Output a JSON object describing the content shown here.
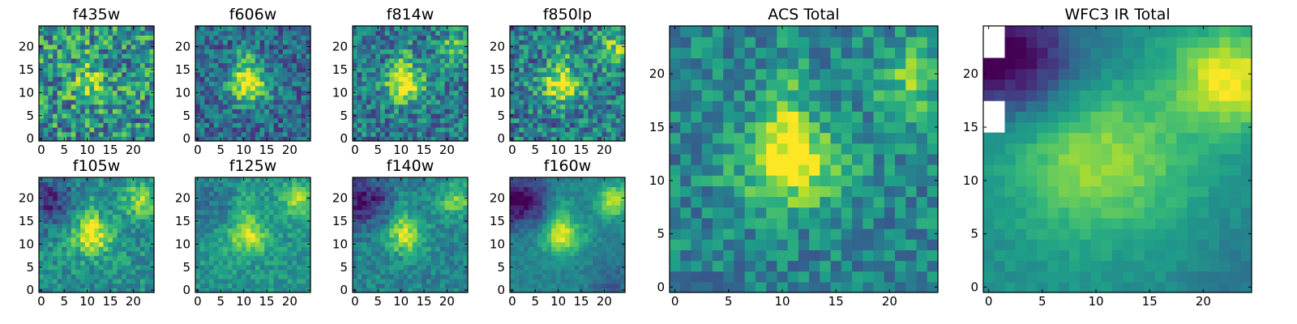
{
  "figure_title": "",
  "chart_data": [
    {
      "type": "heatmap",
      "title": "f435w",
      "xticks": [
        "0",
        "5",
        "10",
        "15",
        "20"
      ],
      "yticks": [
        "0",
        "5",
        "10",
        "15",
        "20"
      ],
      "xlim": [
        0,
        25
      ],
      "ylim": [
        0,
        25
      ],
      "colormap": "viridis",
      "grid_size": 25,
      "feature": "faint central peak, noisy",
      "noise": 0.32,
      "seed": 11
    },
    {
      "type": "heatmap",
      "title": "f606w",
      "xticks": [
        "0",
        "5",
        "10",
        "15",
        "20"
      ],
      "yticks": [
        "0",
        "5",
        "10",
        "15",
        "20"
      ],
      "xlim": [
        0,
        25
      ],
      "ylim": [
        0,
        25
      ],
      "colormap": "viridis",
      "grid_size": 25,
      "feature": "triangular peak near (11,12)",
      "noise": 0.22,
      "seed": 23
    },
    {
      "type": "heatmap",
      "title": "f814w",
      "xticks": [
        "0",
        "5",
        "10",
        "15",
        "20"
      ],
      "yticks": [
        "0",
        "5",
        "10",
        "15",
        "20"
      ],
      "xlim": [
        0,
        25
      ],
      "ylim": [
        0,
        25
      ],
      "colormap": "viridis",
      "grid_size": 25,
      "feature": "central peak plus upper-right source",
      "noise": 0.24,
      "seed": 37
    },
    {
      "type": "heatmap",
      "title": "f850lp",
      "xticks": [
        "0",
        "5",
        "10",
        "15",
        "20"
      ],
      "yticks": [
        "0",
        "5",
        "10",
        "15",
        "20"
      ],
      "xlim": [
        0,
        25
      ],
      "ylim": [
        0,
        25
      ],
      "colormap": "viridis",
      "grid_size": 25,
      "feature": "central peak plus upper-right source",
      "noise": 0.26,
      "seed": 41
    },
    {
      "type": "heatmap",
      "title": "f105w",
      "xticks": [
        "0",
        "5",
        "10",
        "15",
        "20"
      ],
      "yticks": [
        "0",
        "5",
        "10",
        "15",
        "20"
      ],
      "xlim": [
        0,
        25
      ],
      "ylim": [
        0,
        25
      ],
      "colormap": "viridis",
      "grid_size": 25,
      "feature": "central peak, upper-right source, dark upper-left",
      "noise": 0.16,
      "seed": 53
    },
    {
      "type": "heatmap",
      "title": "f125w",
      "xticks": [
        "0",
        "5",
        "10",
        "15",
        "20"
      ],
      "yticks": [
        "0",
        "5",
        "10",
        "15",
        "20"
      ],
      "xlim": [
        0,
        25
      ],
      "ylim": [
        0,
        25
      ],
      "colormap": "viridis",
      "grid_size": 25,
      "feature": "broad central peak, upper-right source",
      "noise": 0.12,
      "seed": 67
    },
    {
      "type": "heatmap",
      "title": "f140w",
      "xticks": [
        "0",
        "5",
        "10",
        "15",
        "20"
      ],
      "yticks": [
        "0",
        "5",
        "10",
        "15",
        "20"
      ],
      "xlim": [
        0,
        25
      ],
      "ylim": [
        0,
        25
      ],
      "colormap": "viridis",
      "grid_size": 25,
      "feature": "broad central peak, dark upper-left",
      "noise": 0.13,
      "seed": 71
    },
    {
      "type": "heatmap",
      "title": "f160w",
      "xticks": [
        "0",
        "5",
        "10",
        "15",
        "20"
      ],
      "yticks": [
        "0",
        "5",
        "10",
        "15",
        "20"
      ],
      "xlim": [
        0,
        25
      ],
      "ylim": [
        0,
        25
      ],
      "colormap": "viridis",
      "grid_size": 25,
      "feature": "smooth central peak, dark upper-left",
      "noise": 0.08,
      "seed": 83
    },
    {
      "type": "heatmap",
      "title": "ACS Total",
      "xticks": [
        "0",
        "5",
        "10",
        "15",
        "20"
      ],
      "yticks": [
        "0",
        "5",
        "10",
        "15",
        "20"
      ],
      "xlim": [
        0,
        25
      ],
      "ylim": [
        0,
        25
      ],
      "colormap": "viridis",
      "grid_size": 25,
      "feature": "bright peak near (12,12)",
      "noise": 0.18,
      "seed": 97
    },
    {
      "type": "heatmap",
      "title": "WFC3 IR Total",
      "xticks": [
        "0",
        "5",
        "10",
        "15",
        "20"
      ],
      "yticks": [
        "0",
        "5",
        "10",
        "15",
        "20"
      ],
      "xlim": [
        0,
        25
      ],
      "ylim": [
        0,
        25
      ],
      "colormap": "viridis",
      "grid_size": 25,
      "feature": "smooth peak at (11,13), bright upper-right, blank upper-left cells",
      "noise": 0.05,
      "seed": 101
    }
  ]
}
